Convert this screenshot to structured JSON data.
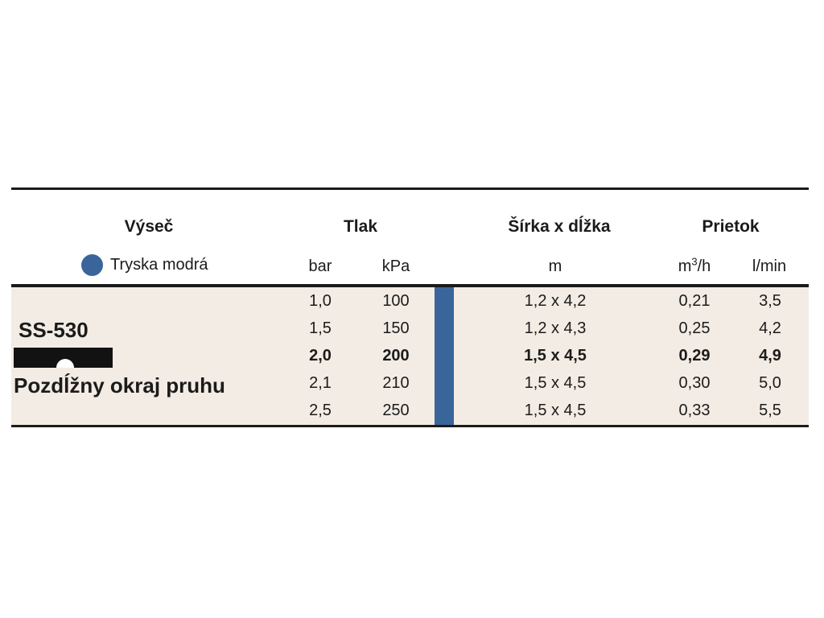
{
  "colors": {
    "accent_blue": "#3a659b",
    "body_background": "#f3ece4",
    "rule_black": "#1b1b1b",
    "page_background": "#ffffff"
  },
  "table": {
    "header": {
      "col_sector": "Výseč",
      "col_pressure": "Tlak",
      "col_dimensions": "Šírka x dĺžka",
      "col_flow": "Prietok"
    },
    "subheader": {
      "nozzle_label": "Tryska modrá",
      "nozzle_dot": "blue-dot-icon",
      "unit_bar": "bar",
      "unit_kpa": "kPa",
      "unit_m": "m",
      "unit_m3h_base": "m",
      "unit_m3h_sup": "3",
      "unit_m3h_rest": "/h",
      "unit_lmin": "l/min"
    },
    "product": {
      "model": "SS-530",
      "description": "Pozdĺžny okraj pruhu",
      "diagram_icon": "strip-edge-sprinkler-icon"
    },
    "rows": [
      {
        "bar": "1,0",
        "kpa": "100",
        "m": "1,2 x 4,2",
        "m3h": "0,21",
        "lmin": "3,5",
        "bold": false
      },
      {
        "bar": "1,5",
        "kpa": "150",
        "m": "1,2 x 4,3",
        "m3h": "0,25",
        "lmin": "4,2",
        "bold": false
      },
      {
        "bar": "2,0",
        "kpa": "200",
        "m": "1,5 x 4,5",
        "m3h": "0,29",
        "lmin": "4,9",
        "bold": true
      },
      {
        "bar": "2,1",
        "kpa": "210",
        "m": "1,5 x 4,5",
        "m3h": "0,30",
        "lmin": "5,0",
        "bold": false
      },
      {
        "bar": "2,5",
        "kpa": "250",
        "m": "1,5 x 4,5",
        "m3h": "0,33",
        "lmin": "5,5",
        "bold": false
      }
    ]
  }
}
